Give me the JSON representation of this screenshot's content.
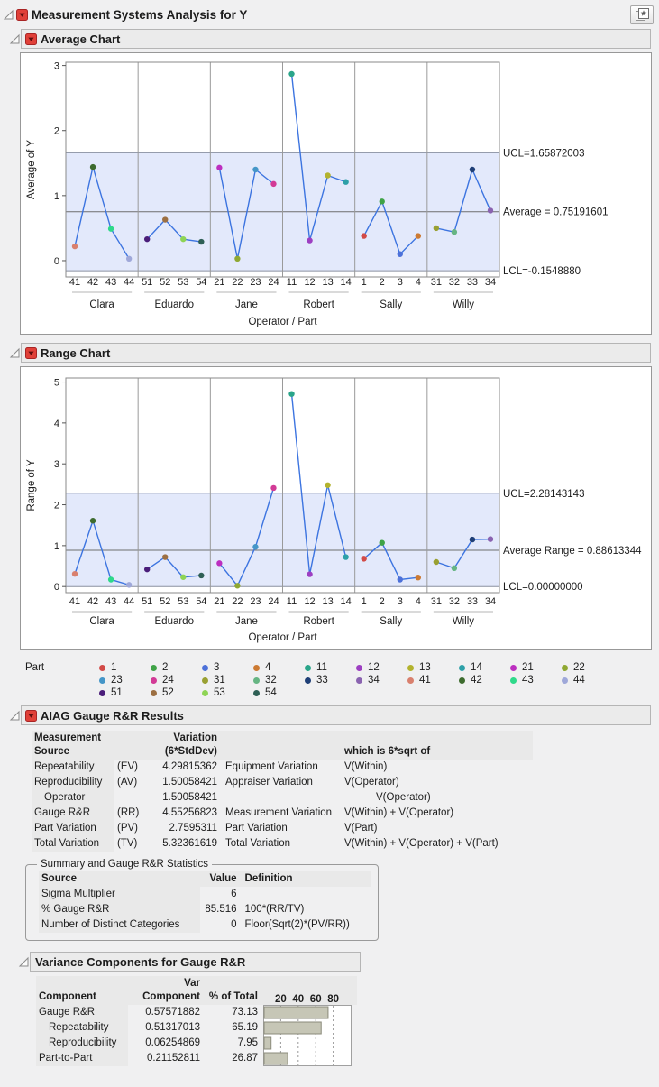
{
  "report": {
    "title": "Measurement Systems Analysis for Y"
  },
  "icons": {
    "pin": "layered-star-icon",
    "menu": "red-triangle-menu-icon",
    "disclosure": "disclosure-triangle-icon"
  },
  "sections": {
    "average_chart": {
      "title": "Average Chart"
    },
    "range_chart": {
      "title": "Range Chart"
    },
    "aiag": {
      "title": "AIAG Gauge R&R Results"
    },
    "variance": {
      "title": "Variance Components for Gauge R&R"
    }
  },
  "colors": {
    "band": "#e3e9fb",
    "line": "#3c74e0",
    "center_line": "#6e6e6e",
    "limit_line": "#8a90a0",
    "panel_border": "#8a8a8a",
    "bar_fill": "#c6c6b6",
    "bar_stroke": "#8b8b7b",
    "header_bg": "#e9e9e9",
    "part_colors": {
      "1": "#d24a47",
      "2": "#3fa347",
      "3": "#4d71d9",
      "4": "#cc7a33",
      "11": "#2aa58a",
      "12": "#9d3fc2",
      "13": "#b3b32e",
      "14": "#2da0a8",
      "21": "#bc2fc0",
      "22": "#8fa832",
      "23": "#4596c8",
      "24": "#d23a96",
      "31": "#99a032",
      "32": "#66b583",
      "33": "#1f3f77",
      "34": "#8a63b0",
      "41": "#d9806e",
      "42": "#3d6b2e",
      "43": "#2fd98a",
      "44": "#9fa8d9",
      "51": "#4a1d7a",
      "52": "#9c6f42",
      "53": "#8ed455",
      "54": "#2e5f55"
    }
  },
  "legend": {
    "label": "Part",
    "parts": [
      "1",
      "2",
      "3",
      "4",
      "11",
      "12",
      "13",
      "14",
      "21",
      "22",
      "23",
      "24",
      "31",
      "32",
      "33",
      "34",
      "41",
      "42",
      "43",
      "44",
      "51",
      "52",
      "53",
      "54"
    ]
  },
  "chart_data": [
    {
      "type": "line",
      "name": "average_chart",
      "ylabel": "Average of Y",
      "xlabel": "Operator / Part",
      "ylim": [
        -0.25,
        3.05
      ],
      "yticks": [
        0,
        1,
        2,
        3
      ],
      "ucl": {
        "label": "UCL=1.65872003",
        "value": 1.65872003
      },
      "center": {
        "label": "Average = 0.75191601",
        "value": 0.75191601
      },
      "lcl": {
        "label": "LCL=-0.1548880",
        "value": -0.154888
      },
      "groups": [
        {
          "operator": "Clara",
          "parts": [
            "41",
            "42",
            "43",
            "44"
          ],
          "values": [
            0.22,
            1.44,
            0.49,
            0.03
          ]
        },
        {
          "operator": "Eduardo",
          "parts": [
            "51",
            "52",
            "53",
            "54"
          ],
          "values": [
            0.33,
            0.63,
            0.33,
            0.29
          ]
        },
        {
          "operator": "Jane",
          "parts": [
            "21",
            "22",
            "23",
            "24"
          ],
          "values": [
            1.43,
            0.03,
            1.4,
            1.18
          ]
        },
        {
          "operator": "Robert",
          "parts": [
            "11",
            "12",
            "13",
            "14"
          ],
          "values": [
            2.87,
            0.31,
            1.31,
            1.21
          ]
        },
        {
          "operator": "Sally",
          "parts": [
            "1",
            "2",
            "3",
            "4"
          ],
          "values": [
            0.38,
            0.91,
            0.1,
            0.38
          ]
        },
        {
          "operator": "Willy",
          "parts": [
            "31",
            "32",
            "33",
            "34"
          ],
          "values": [
            0.5,
            0.44,
            1.4,
            0.77
          ]
        }
      ]
    },
    {
      "type": "line",
      "name": "range_chart",
      "ylabel": "Range of Y",
      "xlabel": "Operator / Part",
      "ylim": [
        -0.15,
        5.1
      ],
      "yticks": [
        0,
        1,
        2,
        3,
        4,
        5
      ],
      "ucl": {
        "label": "UCL=2.28143143",
        "value": 2.28143143
      },
      "center": {
        "label": "Average Range = 0.88613344",
        "value": 0.88613344
      },
      "lcl": {
        "label": "LCL=0.00000000",
        "value": 0.0
      },
      "groups": [
        {
          "operator": "Clara",
          "parts": [
            "41",
            "42",
            "43",
            "44"
          ],
          "values": [
            0.31,
            1.61,
            0.17,
            0.04
          ]
        },
        {
          "operator": "Eduardo",
          "parts": [
            "51",
            "52",
            "53",
            "54"
          ],
          "values": [
            0.42,
            0.72,
            0.23,
            0.27
          ]
        },
        {
          "operator": "Jane",
          "parts": [
            "21",
            "22",
            "23",
            "24"
          ],
          "values": [
            0.57,
            0.02,
            0.97,
            2.41
          ]
        },
        {
          "operator": "Robert",
          "parts": [
            "11",
            "12",
            "13",
            "14"
          ],
          "values": [
            4.71,
            0.3,
            2.48,
            0.72
          ]
        },
        {
          "operator": "Sally",
          "parts": [
            "1",
            "2",
            "3",
            "4"
          ],
          "values": [
            0.68,
            1.07,
            0.17,
            0.22
          ]
        },
        {
          "operator": "Willy",
          "parts": [
            "31",
            "32",
            "33",
            "34"
          ],
          "values": [
            0.6,
            0.45,
            1.15,
            1.16
          ]
        }
      ]
    },
    {
      "type": "bar",
      "name": "variance_pct_of_total",
      "categories": [
        "Gauge R&R",
        "Repeatability",
        "Reproducibility",
        "Part-to-Part"
      ],
      "values": [
        73.13,
        65.19,
        7.95,
        26.87
      ],
      "xticks": [
        20,
        40,
        60,
        80
      ],
      "xlim": [
        0,
        100
      ]
    }
  ],
  "aiag_table": {
    "header": {
      "col1": [
        "Measurement",
        "Source"
      ],
      "col3": [
        "Variation",
        "(6*StdDev)"
      ],
      "col5": "which is 6*sqrt of"
    },
    "rows": [
      {
        "source": "Repeatability",
        "abbr": "(EV)",
        "variation": "4.29815362",
        "desc": "Equipment Variation",
        "formula": "V(Within)",
        "indent": 0,
        "findent": 0
      },
      {
        "source": "Reproducibility",
        "abbr": "(AV)",
        "variation": "1.50058421",
        "desc": "Appraiser Variation",
        "formula": "V(Operator)",
        "indent": 0,
        "findent": 0
      },
      {
        "source": "Operator",
        "abbr": "",
        "variation": "1.50058421",
        "desc": "",
        "formula": "V(Operator)",
        "indent": 1,
        "findent": 1
      },
      {
        "source": "Gauge R&R",
        "abbr": "(RR)",
        "variation": "4.55256823",
        "desc": "Measurement Variation",
        "formula": "V(Within) + V(Operator)",
        "indent": 0,
        "findent": 0
      },
      {
        "source": "Part Variation",
        "abbr": "(PV)",
        "variation": "2.7595311",
        "desc": "Part Variation",
        "formula": "V(Part)",
        "indent": 0,
        "findent": 0
      },
      {
        "source": "Total Variation",
        "abbr": "(TV)",
        "variation": "5.32361619",
        "desc": "Total Variation",
        "formula": "V(Within) + V(Operator) + V(Part)",
        "indent": 0,
        "findent": 0
      }
    ]
  },
  "summary": {
    "title": "Summary and Gauge R&R Statistics",
    "headers": [
      "Source",
      "Value",
      "Definition"
    ],
    "rows": [
      {
        "source": "Sigma Multiplier",
        "value": "6",
        "definition": ""
      },
      {
        "source": "% Gauge R&R",
        "value": "85.516",
        "definition": "100*(RR/TV)"
      },
      {
        "source": "Number of Distinct Categories",
        "value": "0",
        "definition": "Floor(Sqrt(2)*(PV/RR))"
      }
    ]
  },
  "variance_table": {
    "headers": {
      "col1": "Component",
      "col2": [
        "Var",
        "Component"
      ],
      "col3": "% of Total"
    },
    "rows": [
      {
        "component": "Gauge R&R",
        "var_component": "0.57571882",
        "pct": "73.13",
        "pct_value": 73.13,
        "indent": 0
      },
      {
        "component": "Repeatability",
        "var_component": "0.51317013",
        "pct": "65.19",
        "pct_value": 65.19,
        "indent": 1
      },
      {
        "component": "Reproducibility",
        "var_component": "0.06254869",
        "pct": "7.95",
        "pct_value": 7.95,
        "indent": 1
      },
      {
        "component": "Part-to-Part",
        "var_component": "0.21152811",
        "pct": "26.87",
        "pct_value": 26.87,
        "indent": 0
      }
    ]
  }
}
